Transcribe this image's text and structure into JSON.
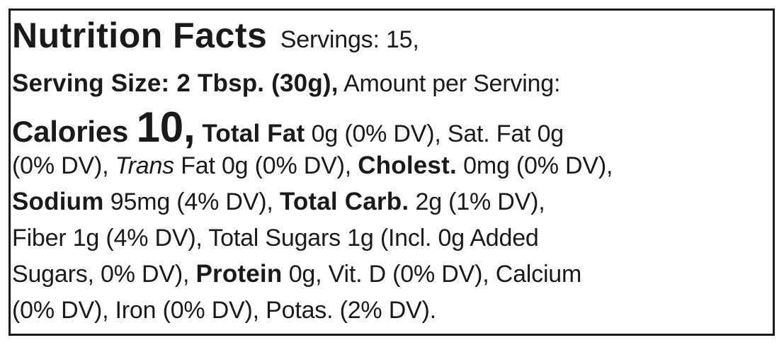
{
  "label": {
    "lines": [
      [
        {
          "t": "Nutrition Facts",
          "s": "title",
          "n": "label-title"
        },
        {
          "t": "  Servings: 15,",
          "s": "",
          "n": "servings"
        }
      ],
      [
        {
          "t": "Serving Size: 2 Tbsp. (30g),",
          "s": "b",
          "n": "serving-size"
        },
        {
          "t": " Amount per Serving:",
          "s": "",
          "n": "amount-per-serving"
        }
      ],
      [
        {
          "t": "Calories ",
          "s": "cal",
          "n": "calories-label"
        },
        {
          "t": "10,",
          "s": "calnum",
          "n": "calories-value"
        },
        {
          "t": " Total Fat",
          "s": "b",
          "n": "total-fat-label"
        },
        {
          "t": " 0g (0% DV), Sat. Fat 0g",
          "s": "",
          "n": "fat-values"
        }
      ],
      [
        {
          "t": "(0% DV), ",
          "s": "",
          "n": "sat-fat-dv"
        },
        {
          "t": "Trans",
          "s": "i",
          "n": "trans-label"
        },
        {
          "t": " Fat 0g (0% DV), ",
          "s": "",
          "n": "trans-fat-values"
        },
        {
          "t": "Cholest.",
          "s": "b",
          "n": "cholesterol-label"
        },
        {
          "t": " 0mg (0% DV),",
          "s": "",
          "n": "cholesterol-values"
        }
      ],
      [
        {
          "t": "Sodium",
          "s": "b",
          "n": "sodium-label"
        },
        {
          "t": " 95mg (4% DV), ",
          "s": "",
          "n": "sodium-values"
        },
        {
          "t": "Total Carb.",
          "s": "b",
          "n": "carb-label"
        },
        {
          "t": " 2g (1% DV),",
          "s": "",
          "n": "carb-values"
        }
      ],
      [
        {
          "t": "Fiber 1g (4% DV), Total Sugars 1g (Incl. 0g Added",
          "s": "",
          "n": "fiber-sugars"
        }
      ],
      [
        {
          "t": "Sugars, 0% DV), ",
          "s": "",
          "n": "added-sugars"
        },
        {
          "t": "Protein",
          "s": "b",
          "n": "protein-label"
        },
        {
          "t": " 0g, Vit. D (0% DV), Calcium",
          "s": "",
          "n": "protein-values"
        }
      ],
      [
        {
          "t": "(0% DV), Iron (0% DV), Potas. (2% DV).",
          "s": "",
          "n": "minerals"
        }
      ]
    ]
  }
}
